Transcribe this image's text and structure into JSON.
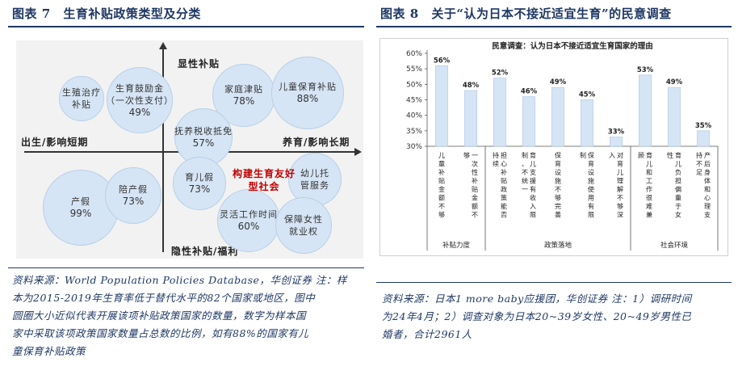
{
  "left_panel": {
    "fig_label": "图表 7",
    "title": "生育补贴政策类型及分类",
    "axis": {
      "top": "显性补贴",
      "bottom": "隐性补贴/福利",
      "left": "出生/影响短期",
      "right": "养育/影响长期"
    },
    "center_note_line1": "构建生育友好",
    "center_note_line2": "型社会",
    "bubbles": [
      {
        "line1": "生殖治疗",
        "line2": "补贴",
        "pct": ""
      },
      {
        "line1": "生育鼓励金",
        "line2": "（一次性支付）",
        "pct": "49%"
      },
      {
        "line1": "家庭津贴",
        "line2": "",
        "pct": "78%"
      },
      {
        "line1": "儿童保育补贴",
        "line2": "",
        "pct": "88%"
      },
      {
        "line1": "抚养税收抵免",
        "line2": "",
        "pct": "57%"
      },
      {
        "line1": "产假",
        "line2": "",
        "pct": "99%"
      },
      {
        "line1": "陪产假",
        "line2": "",
        "pct": "73%"
      },
      {
        "line1": "育儿假",
        "line2": "",
        "pct": "73%"
      },
      {
        "line1": "幼儿托",
        "line2": "管服务",
        "pct": ""
      },
      {
        "line1": "灵活工作时间",
        "line2": "",
        "pct": "60%"
      },
      {
        "line1": "保障女性",
        "line2": "就业权",
        "pct": ""
      }
    ],
    "source_lines": [
      "资料来源：World Population Policies Database，华创证券 注：样",
      "本为2015-2019年生育率低于替代水平的82个国家或地区，图中",
      "圆圈大小近似代表开展该项补贴政策国家的数量，数字为样本国",
      "家中采取该项政策国家数量占总数的比例，如有88%的国家有儿",
      "童保育补贴政策"
    ]
  },
  "right_panel": {
    "fig_label": "图表 8",
    "title": "关于“认为日本不接近适宜生育”的民意调查",
    "source_lines": [
      "资料来源：日本1 more baby应援团，华创证券 注：1）调研时间",
      "为24年4月；2）调查对象为日本20~39岁女性、20~49岁男性已",
      "婚者，合计2961人"
    ]
  },
  "chart_data": [
    {
      "type": "bubble",
      "title": "生育补贴政策类型及分类",
      "xlabel_left": "出生/影响短期",
      "xlabel_right": "养育/影响长期",
      "ylabel_top": "显性补贴",
      "ylabel_bottom": "隐性补贴/福利",
      "points": [
        {
          "label": "生殖治疗补贴",
          "value": null
        },
        {
          "label": "生育鼓励金（一次性支付）",
          "value": 49
        },
        {
          "label": "家庭津贴",
          "value": 78
        },
        {
          "label": "儿童保育补贴",
          "value": 88
        },
        {
          "label": "抚养税收抵免",
          "value": 57
        },
        {
          "label": "产假",
          "value": 99
        },
        {
          "label": "陪产假",
          "value": 73
        },
        {
          "label": "育儿假",
          "value": 73
        },
        {
          "label": "幼儿托管服务",
          "value": null
        },
        {
          "label": "灵活工作时间",
          "value": 60
        },
        {
          "label": "保障女性就业权",
          "value": null
        }
      ]
    },
    {
      "type": "bar",
      "title": "民意调查：认为日本不接近适宜生育国家的理由",
      "categories": [
        "儿童补贴金额不够",
        "一次性补贴金额不够",
        "担心补贴政策能否持续",
        "育儿支援有收入限制、不统一",
        "保育设施不够完善",
        "保育设施使用有限制",
        "对育儿理解不够深入",
        "育儿和工作很难兼顾",
        "育儿负担偏重于女性",
        "产后身体和心理支持不足"
      ],
      "values": [
        56,
        48,
        52,
        46,
        49,
        45,
        33,
        53,
        49,
        35
      ],
      "value_labels": [
        "56%",
        "48%",
        "52%",
        "46%",
        "49%",
        "45%",
        "33%",
        "53%",
        "49%",
        "35%"
      ],
      "groups": [
        {
          "name": "补贴力度",
          "count": 2
        },
        {
          "name": "政策落地",
          "count": 5
        },
        {
          "name": "社会环境",
          "count": 3
        }
      ],
      "yticks": [
        "30%",
        "35%",
        "40%",
        "45%",
        "50%",
        "55%",
        "60%"
      ],
      "ylim": [
        30,
        60
      ],
      "bar_color": "#d6e5f5"
    }
  ]
}
